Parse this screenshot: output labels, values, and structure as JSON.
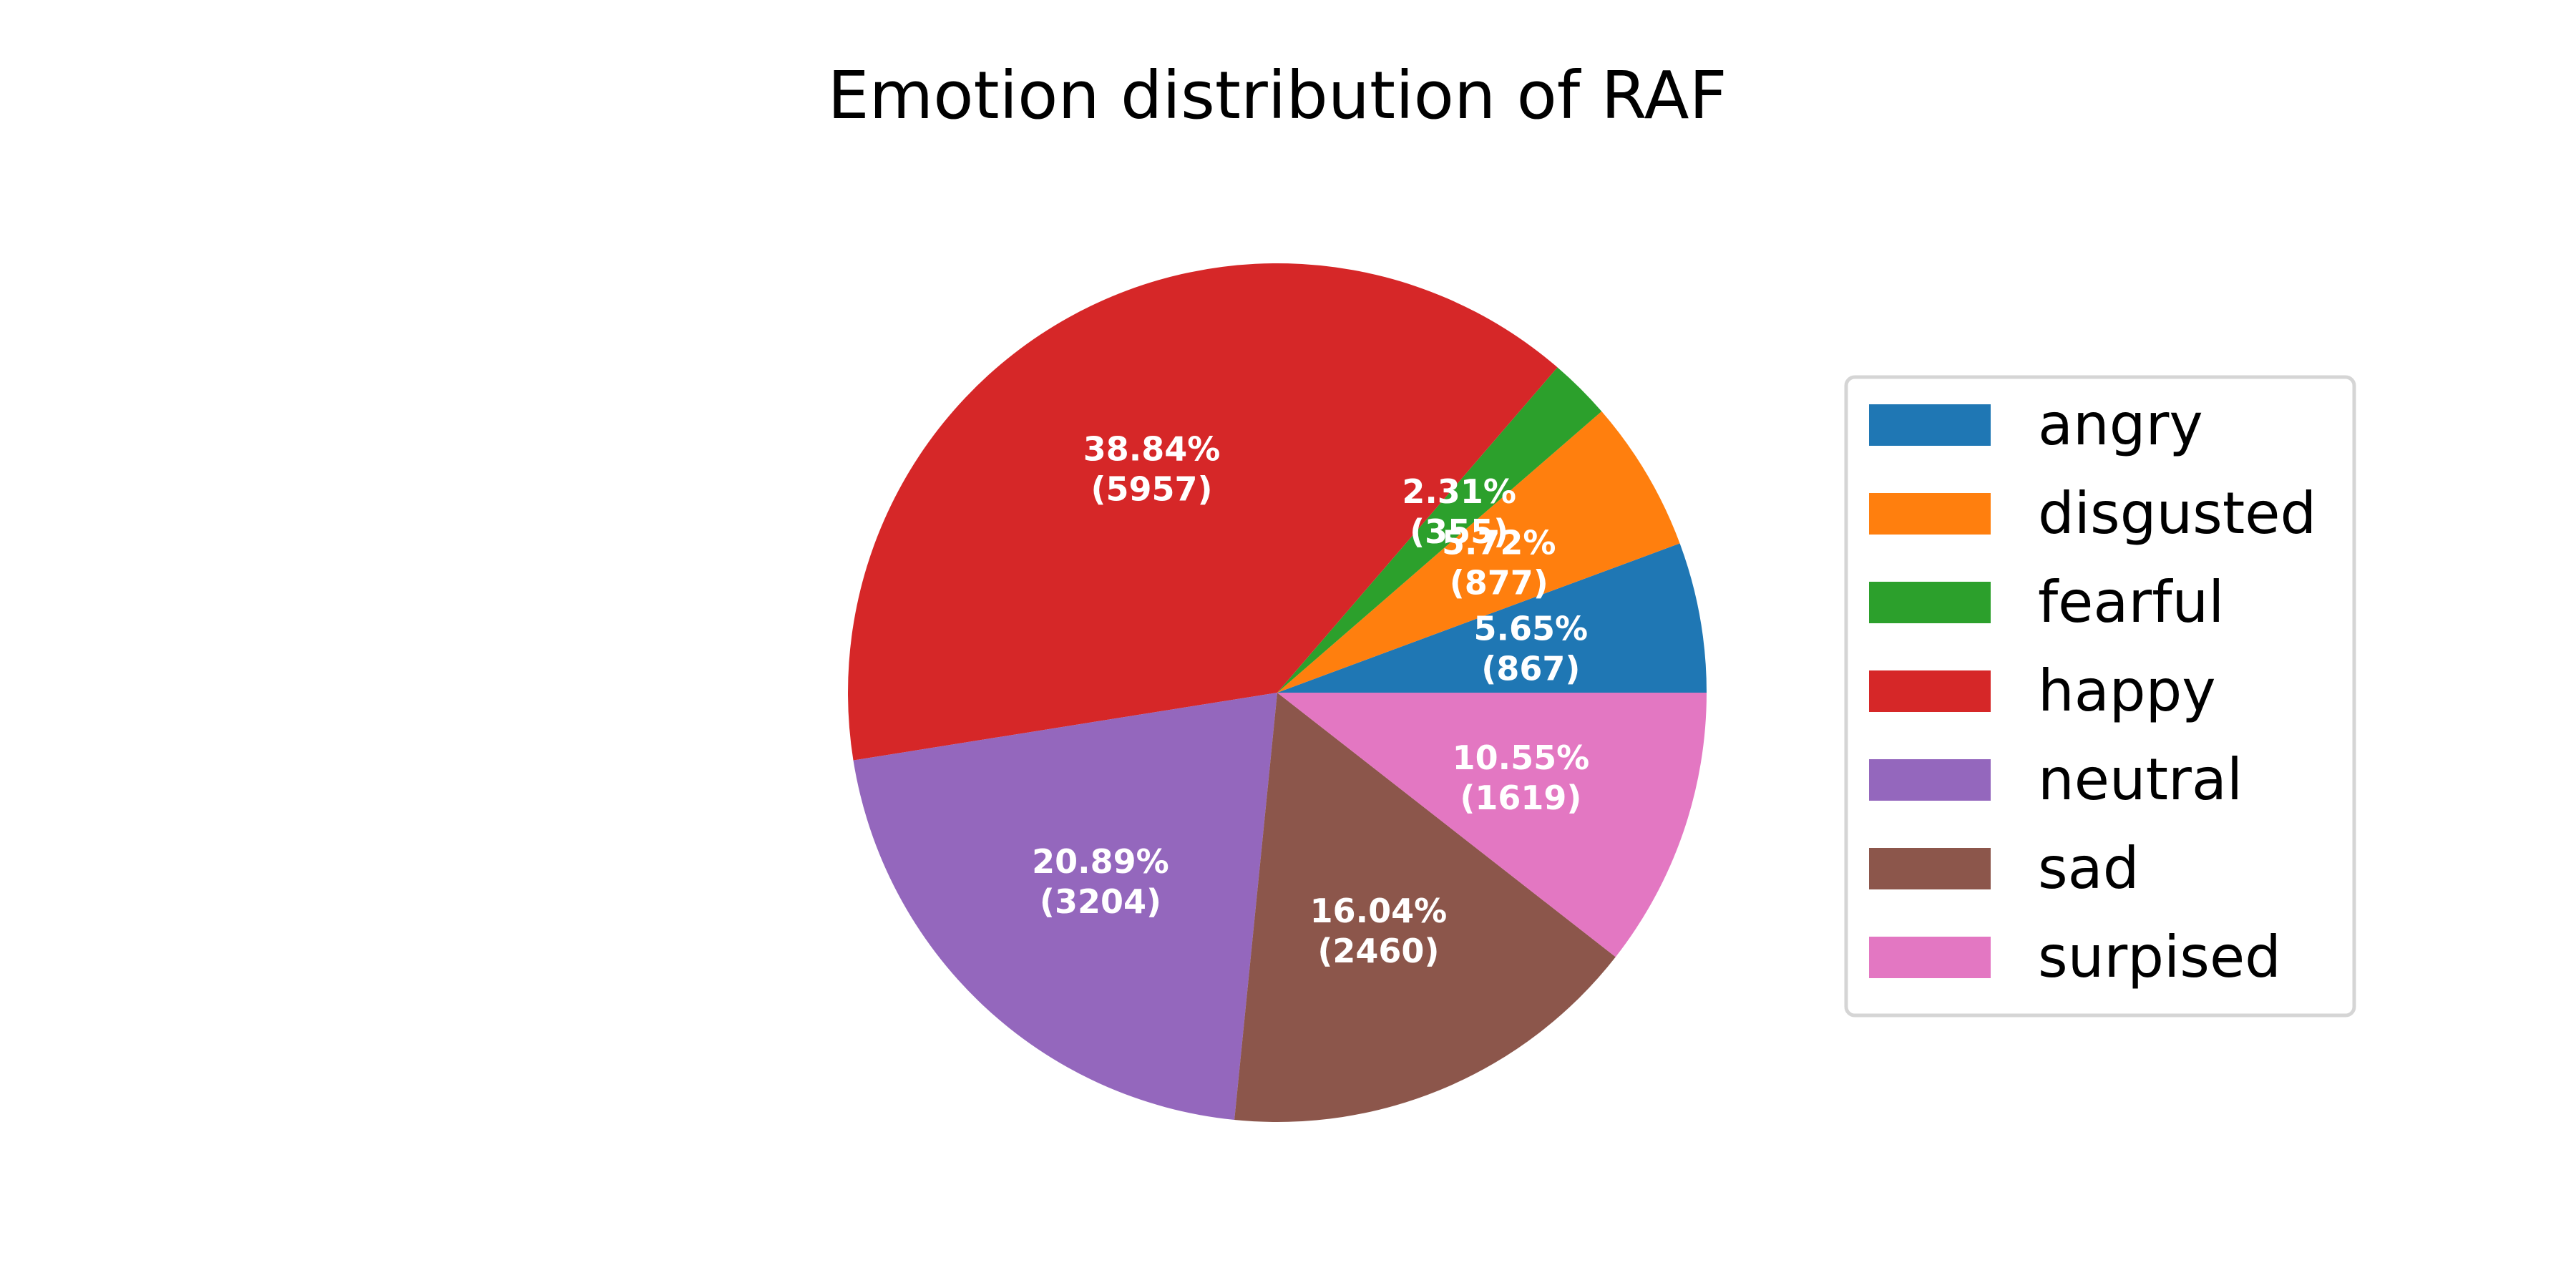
{
  "chart_data": {
    "type": "pie",
    "title": "Emotion distribution of RAF",
    "slices": [
      {
        "label": "angry",
        "value": 867,
        "percent_label": "5.65%",
        "count_label": "(867)",
        "color": "#1f77b4"
      },
      {
        "label": "disgusted",
        "value": 877,
        "percent_label": "5.72%",
        "count_label": "(877)",
        "color": "#ff7f0e"
      },
      {
        "label": "fearful",
        "value": 355,
        "percent_label": "2.31%",
        "count_label": "(355)",
        "color": "#2ca02c"
      },
      {
        "label": "happy",
        "value": 5957,
        "percent_label": "38.84%",
        "count_label": "(5957)",
        "color": "#d62728"
      },
      {
        "label": "neutral",
        "value": 3204,
        "percent_label": "20.89%",
        "count_label": "(3204)",
        "color": "#9467bd"
      },
      {
        "label": "sad",
        "value": 2460,
        "percent_label": "16.04%",
        "count_label": "(2460)",
        "color": "#8c564b"
      },
      {
        "label": "surpised",
        "value": 1619,
        "percent_label": "10.55%",
        "count_label": "(1619)",
        "color": "#e377c2"
      }
    ],
    "start_angle_deg": 0,
    "direction": "counterclockwise",
    "legend": {
      "position": "right"
    }
  }
}
